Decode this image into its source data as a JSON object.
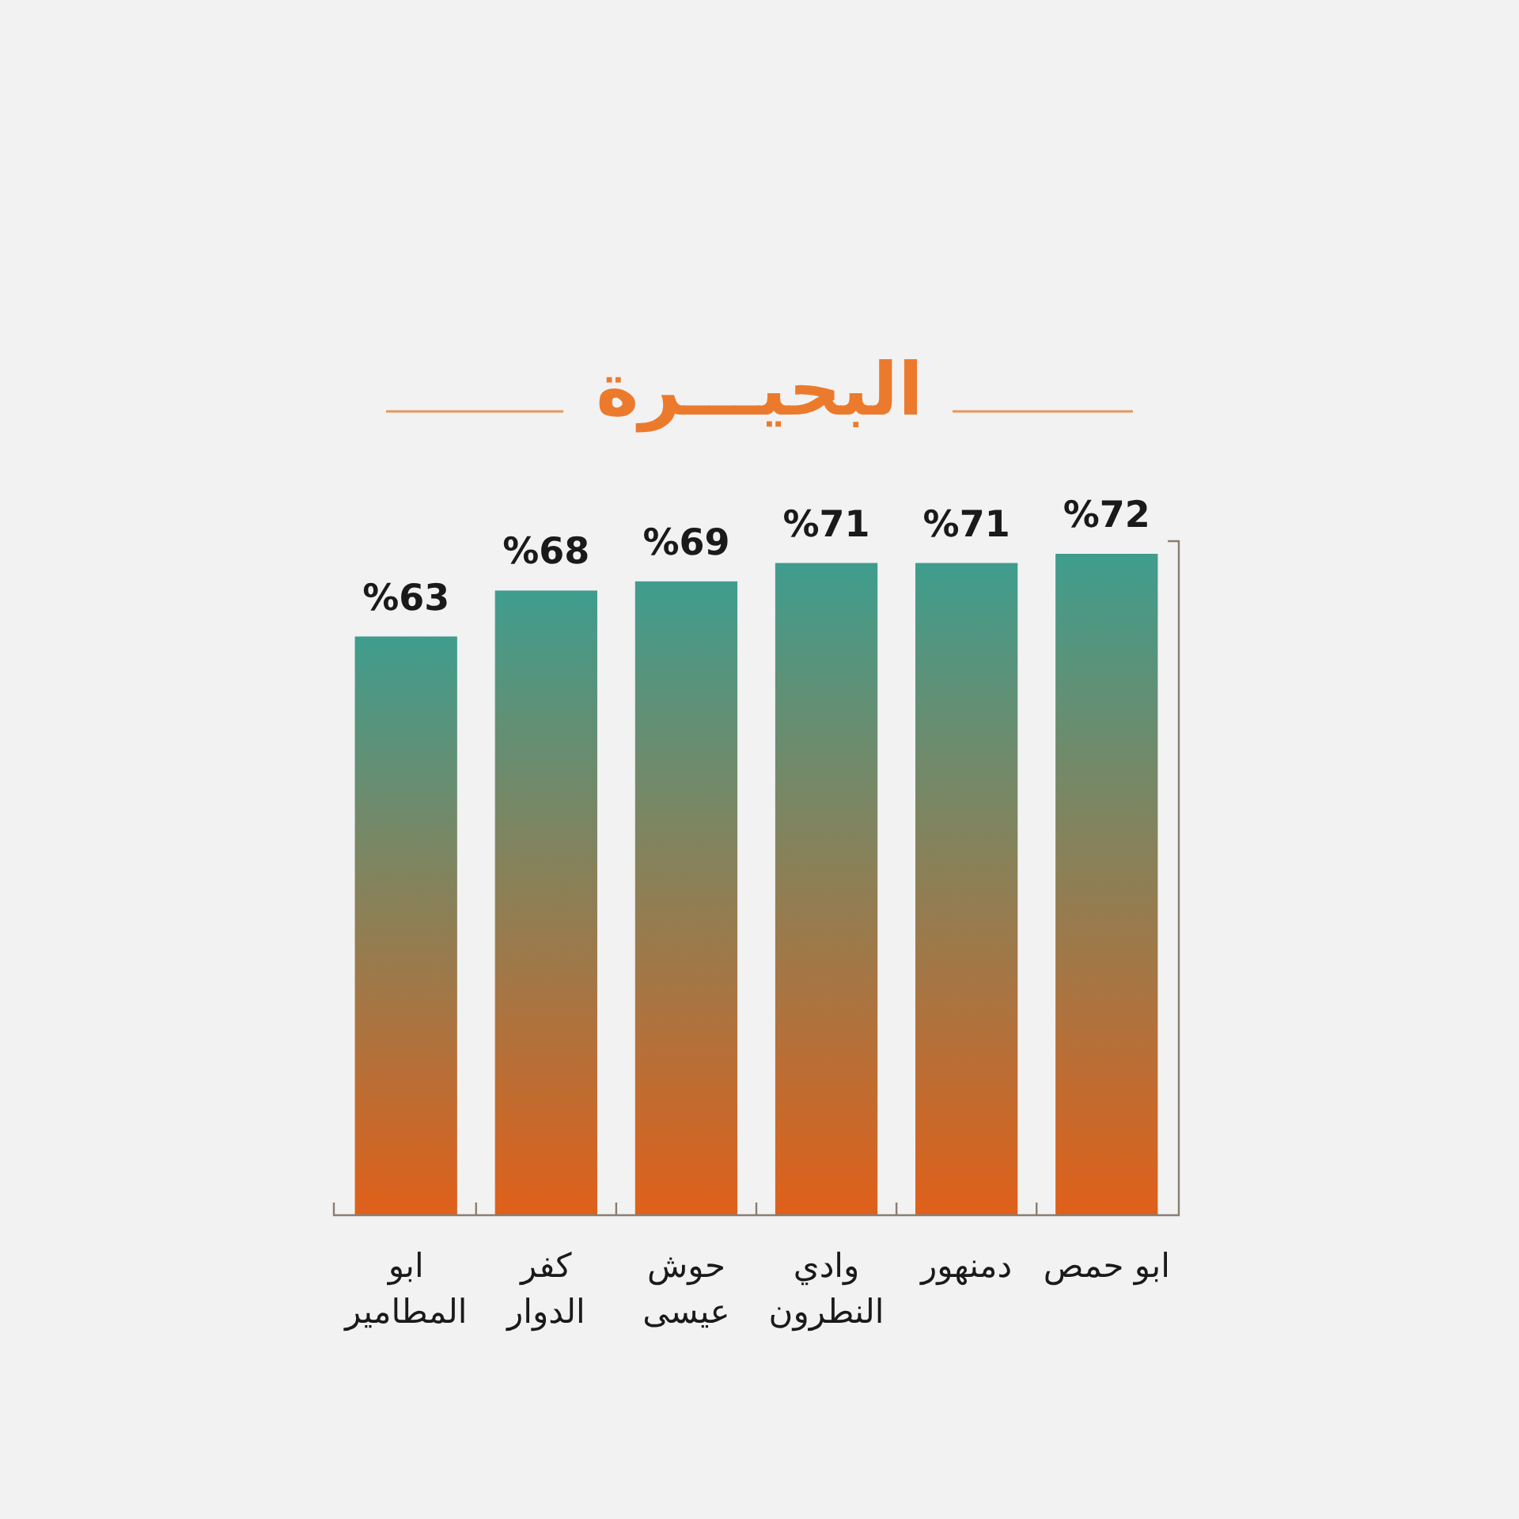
{
  "chart_data": {
    "type": "bar",
    "title": "البحيـــرة",
    "categories": [
      "ابو\nالمطامير",
      "كفر\nالدوار",
      "حوش\nعيسى",
      "وادي\nالنطرون",
      "دمنهور",
      "ابو حمص"
    ],
    "values": [
      63,
      68,
      69,
      71,
      71,
      72
    ],
    "color": "#3f9d8e",
    "value_labels": [
      "%63",
      "%68",
      "%69",
      "%71",
      "%71",
      "%72"
    ]
  }
}
